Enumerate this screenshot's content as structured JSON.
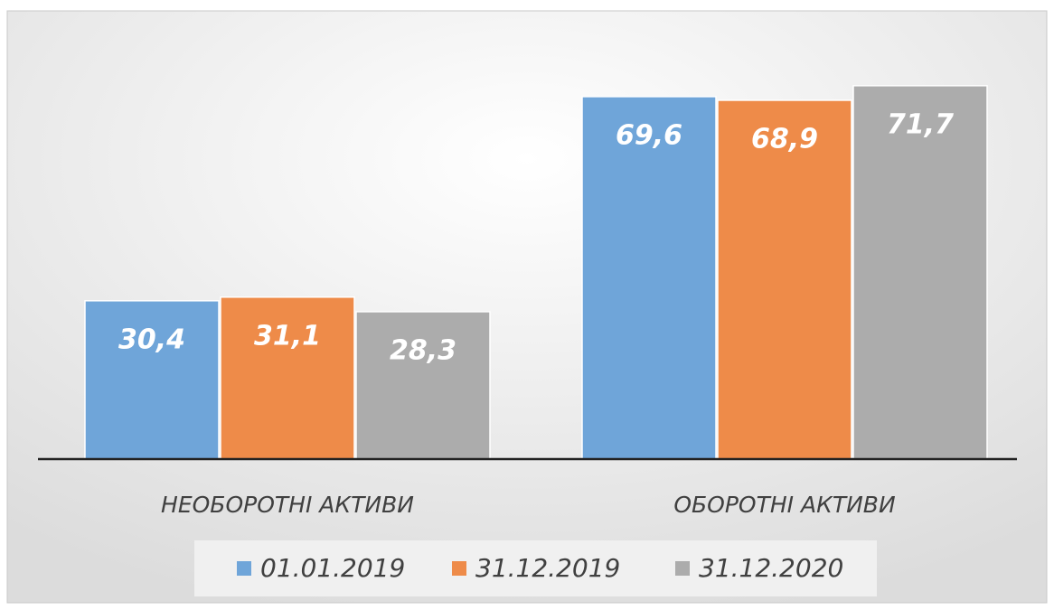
{
  "chart_data": {
    "type": "bar",
    "categories": [
      "НЕОБОРОТНІ АКТИВИ",
      "ОБОРОТНІ АКТИВИ"
    ],
    "series": [
      {
        "name": "01.01.2019",
        "color": "#6fa5d9",
        "values": [
          30.4,
          69.6
        ],
        "value_labels": [
          "30,4",
          "69,6"
        ]
      },
      {
        "name": "31.12.2019",
        "color": "#ee8b49",
        "values": [
          31.1,
          68.9
        ],
        "value_labels": [
          "31,1",
          "68,9"
        ]
      },
      {
        "name": "31.12.2020",
        "color": "#acacac",
        "values": [
          28.3,
          71.7
        ],
        "value_labels": [
          "28,3",
          "71,7"
        ]
      }
    ],
    "ylim": [
      0,
      80
    ],
    "legend": "bottom"
  }
}
